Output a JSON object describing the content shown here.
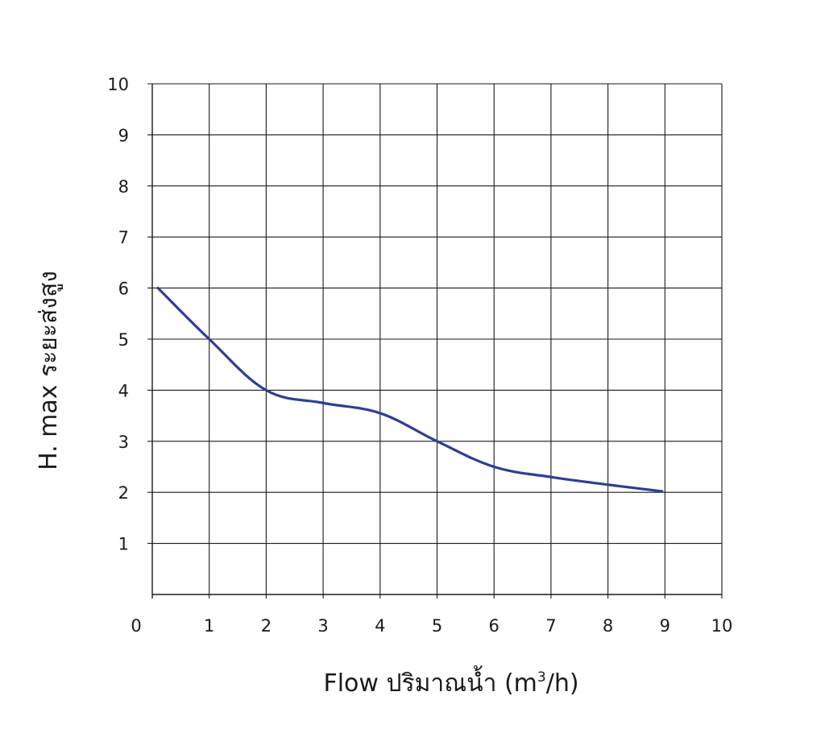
{
  "chart_data": {
    "type": "line",
    "title": "",
    "xlabel": "Flow  ปริมาณน้ำ (m³/h)",
    "xlabel_parts": {
      "before": "Flow  ปริมาณน้ำ (m",
      "superscript": "3",
      "after": "/h)"
    },
    "ylabel": "H. max  ระยะส่งสูง",
    "xlim": [
      0,
      10
    ],
    "ylim": [
      0,
      10
    ],
    "x_ticks": [
      "0",
      "1",
      "2",
      "3",
      "4",
      "5",
      "6",
      "7",
      "8",
      "9",
      "10"
    ],
    "y_ticks": [
      "1",
      "2",
      "3",
      "4",
      "5",
      "6",
      "7",
      "8",
      "9",
      "10"
    ],
    "grid": true,
    "legend": "none",
    "series": [
      {
        "color": "#2b3f93",
        "x": [
          0.1,
          1,
          2,
          3,
          4,
          5,
          6,
          7,
          8,
          8.95
        ],
        "y": [
          6.0,
          5.0,
          4.0,
          3.75,
          3.55,
          3.0,
          2.5,
          2.3,
          2.15,
          2.02
        ]
      }
    ]
  }
}
